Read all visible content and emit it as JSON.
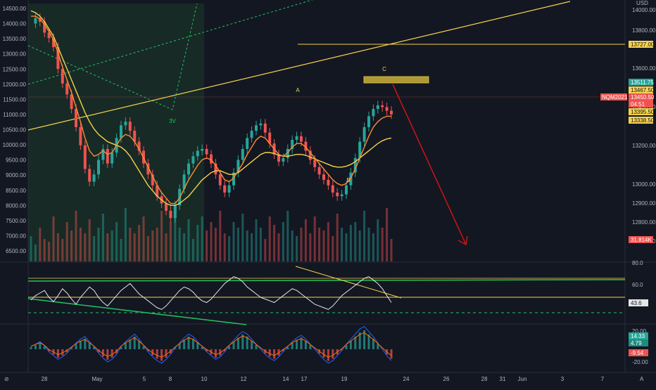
{
  "chart_data": {
    "type": "line",
    "symbol": "NQM2021",
    "currency": "USD",
    "colors": {
      "background": "#131722",
      "up": "#26a69a",
      "down": "#ef5350",
      "trendline": "#f7d24c",
      "pattern": "#22c55e",
      "forecast": "#d01414",
      "label_bg_red": "#ef5350",
      "label_bg_yellow": "#f7d24c"
    },
    "left_axis": {
      "ticks": [
        "14500.00",
        "14000.00",
        "13500.00",
        "13000.00",
        "12500.00",
        "12000.00",
        "11500.00",
        "11000.00",
        "10500.00",
        "10000.00",
        "9500.00",
        "9000.00",
        "8500.00",
        "8000.00",
        "7500.00",
        "7000.00",
        "6500.00"
      ],
      "range": [
        6300,
        14700
      ]
    },
    "right_axis": {
      "ticks": [
        "14000.00",
        "13800.00",
        "13600.00",
        "13400.00",
        "13200.00",
        "13000.00",
        "12900.00",
        "12800.00",
        "12700.00"
      ],
      "price_labels": [
        {
          "text": "13727.00",
          "style": "yellow"
        },
        {
          "text": "13511.75",
          "style": "green"
        },
        {
          "text": "13467.50",
          "style": "yellow"
        },
        {
          "text": "13450.50",
          "style": "red"
        },
        {
          "text": "04:51",
          "style": "red_sub"
        },
        {
          "text": "13395.50",
          "style": "yellow"
        },
        {
          "text": "13338.50",
          "style": "yellow"
        },
        {
          "text": "31.814K",
          "style": "red"
        }
      ],
      "symbol_tag": "NQM2021"
    },
    "x_axis": {
      "labels": [
        "28",
        "May",
        "5",
        "8",
        "10",
        "12",
        "14",
        "17",
        "19",
        "24",
        "26",
        "28",
        "31",
        "Jun",
        "3",
        "7"
      ]
    },
    "annotations": [
      {
        "text": "A",
        "series": "wave"
      },
      {
        "text": "B",
        "series": "wave"
      },
      {
        "text": "C",
        "series": "wave"
      },
      {
        "text": "3V",
        "series": "pattern"
      }
    ],
    "price_series": [
      13950,
      13980,
      13960,
      13900,
      13870,
      13820,
      13700,
      13620,
      13560,
      13480,
      13380,
      13280,
      13150,
      13080,
      13120,
      13200,
      13260,
      13180,
      13240,
      13320,
      13390,
      13410,
      13360,
      13300,
      13250,
      13180,
      13120,
      13060,
      13000,
      12960,
      12920,
      12880,
      12950,
      13040,
      13120,
      13180,
      13220,
      13250,
      13260,
      13230,
      13180,
      13120,
      13060,
      13020,
      13060,
      13130,
      13200,
      13260,
      13320,
      13360,
      13390,
      13400,
      13350,
      13290,
      13230,
      13190,
      13210,
      13260,
      13310,
      13330,
      13300,
      13250,
      13200,
      13160,
      13120,
      13090,
      13060,
      13020,
      13000,
      13010,
      13060,
      13130,
      13210,
      13300,
      13380,
      13440,
      13480,
      13500,
      13490,
      13470,
      13450
    ],
    "ma_series": [
      {
        "name": "",
        "color": "#f7d24c",
        "values": [
          14020,
          14010,
          13990,
          13960,
          13920,
          13880,
          13820,
          13760,
          13700,
          13640,
          13580,
          13520,
          13460,
          13410,
          13370,
          13340,
          13320,
          13300,
          13290,
          13280,
          13270,
          13250,
          13220,
          13180,
          13140,
          13100,
          13060,
          13030,
          13000,
          12980,
          12960,
          12950,
          12950,
          12960,
          12980,
          13000,
          13030,
          13060,
          13090,
          13110,
          13130,
          13140,
          13140,
          13130,
          13120,
          13120,
          13130,
          13150,
          13170,
          13190,
          13210,
          13230,
          13240,
          13240,
          13235,
          13225,
          13220,
          13220,
          13225,
          13230,
          13230,
          13225,
          13215,
          13205,
          13195,
          13185,
          13175,
          13165,
          13160,
          13160,
          13165,
          13175,
          13190,
          13210,
          13230,
          13250,
          13270,
          13290,
          13305,
          13315,
          13320
        ]
      },
      {
        "name": "",
        "color": "#ff8a33",
        "values": [
          13990,
          13990,
          13975,
          13945,
          13905,
          13860,
          13790,
          13710,
          13640,
          13570,
          13490,
          13410,
          13320,
          13250,
          13220,
          13230,
          13250,
          13230,
          13240,
          13280,
          13320,
          13340,
          13330,
          13300,
          13260,
          13210,
          13160,
          13110,
          13060,
          13020,
          12990,
          12960,
          12960,
          12990,
          13040,
          13090,
          13130,
          13170,
          13200,
          13210,
          13200,
          13170,
          13130,
          13090,
          13080,
          13100,
          13140,
          13180,
          13230,
          13270,
          13310,
          13330,
          13320,
          13290,
          13260,
          13230,
          13220,
          13240,
          13270,
          13290,
          13290,
          13270,
          13240,
          13210,
          13180,
          13150,
          13120,
          13090,
          13070,
          13060,
          13070,
          13100,
          13150,
          13210,
          13270,
          13330,
          13380,
          13410,
          13430,
          13440,
          13440
        ]
      }
    ],
    "volume_series": [
      0.45,
      0.3,
      0.6,
      0.4,
      0.35,
      0.8,
      0.5,
      0.4,
      0.7,
      0.55,
      0.9,
      0.6,
      0.5,
      0.75,
      0.45,
      0.6,
      0.85,
      0.5,
      0.55,
      0.7,
      0.4,
      0.95,
      0.6,
      0.5,
      0.65,
      0.8,
      0.45,
      0.55,
      0.6,
      0.9,
      0.5,
      0.7,
      0.85,
      0.6,
      0.5,
      0.75,
      0.4,
      0.65,
      0.8,
      0.55,
      0.7,
      0.6,
      0.9,
      0.5,
      0.45,
      0.7,
      0.6,
      0.85,
      0.55,
      0.5,
      0.75,
      0.6,
      0.4,
      0.8,
      0.65,
      0.5,
      0.7,
      0.9,
      0.55,
      0.45,
      0.6,
      0.75,
      0.5,
      0.8,
      0.6,
      0.55,
      0.7,
      0.45,
      0.85,
      0.6,
      0.5,
      0.65,
      0.7,
      0.55,
      0.9,
      0.6,
      0.5,
      0.75,
      0.6,
      0.95,
      0.4
    ],
    "rsi": {
      "ticks": [
        "80.0",
        "60.0"
      ],
      "label": "43.6",
      "values": [
        47,
        52,
        55,
        58,
        50,
        45,
        52,
        60,
        55,
        48,
        42,
        50,
        56,
        62,
        58,
        50,
        44,
        40,
        46,
        52,
        58,
        62,
        66,
        60,
        54,
        50,
        46,
        42,
        38,
        36,
        40,
        46,
        52,
        58,
        62,
        60,
        56,
        50,
        46,
        44,
        48,
        54,
        60,
        66,
        70,
        74,
        72,
        68,
        62,
        58,
        54,
        50,
        48,
        46,
        44,
        48,
        52,
        56,
        60,
        58,
        54,
        50,
        46,
        42,
        40,
        38,
        36,
        40,
        46,
        52,
        56,
        60,
        64,
        68,
        72,
        74,
        70,
        66,
        60,
        52,
        44
      ]
    },
    "macd": {
      "ticks": [
        "20.00",
        "-20.00"
      ],
      "labels": [
        {
          "text": "14.33",
          "style": "green"
        },
        {
          "text": "4.79",
          "style": "teal"
        },
        {
          "text": "-9.54",
          "style": "red"
        }
      ],
      "hist": [
        2,
        4,
        6,
        3,
        -2,
        -5,
        -8,
        -6,
        -3,
        1,
        5,
        8,
        10,
        6,
        2,
        -3,
        -7,
        -10,
        -8,
        -4,
        2,
        6,
        9,
        12,
        8,
        3,
        -2,
        -6,
        -9,
        -11,
        -8,
        -4,
        1,
        5,
        9,
        12,
        10,
        6,
        2,
        -2,
        -5,
        -8,
        -6,
        -2,
        3,
        7,
        11,
        14,
        12,
        8,
        4,
        0,
        -4,
        -7,
        -9,
        -6,
        -2,
        2,
        6,
        9,
        11,
        8,
        4,
        0,
        -4,
        -8,
        -11,
        -9,
        -5,
        -1,
        4,
        8,
        12,
        16,
        18,
        14,
        10,
        5,
        0,
        -5,
        -9
      ]
    }
  }
}
